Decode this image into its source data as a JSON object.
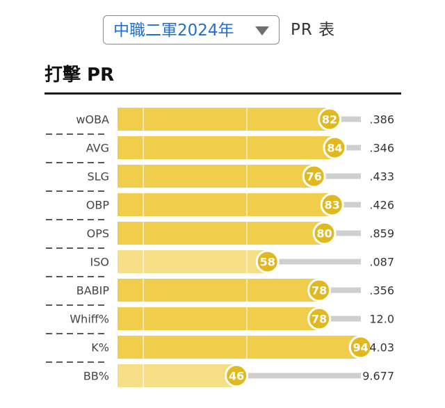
{
  "header": {
    "selector": {
      "selected": "中職二軍2024年",
      "icon": "caret-down-icon"
    },
    "label": "PR 表"
  },
  "section": {
    "title": "打擊 PR"
  },
  "colors": {
    "bar_high": "#f0cd4b",
    "bar_low": "#f6de86",
    "badge": "#e2b81f",
    "track": "#cfcfcf",
    "divider": "#222222"
  },
  "chart_data": {
    "type": "bar",
    "orientation": "horizontal",
    "title": "打擊 PR",
    "categories": [
      "wOBA",
      "AVG",
      "SLG",
      "OBP",
      "OPS",
      "ISO",
      "BABIP",
      "Whiff%",
      "K%",
      "BB%"
    ],
    "pr": [
      82,
      84,
      76,
      83,
      80,
      58,
      78,
      78,
      94,
      46
    ],
    "values": [
      ".386",
      ".346",
      ".433",
      ".426",
      ".859",
      ".087",
      ".356",
      "12.0",
      "4.03",
      "9.677"
    ],
    "xlim": [
      0,
      100
    ]
  }
}
